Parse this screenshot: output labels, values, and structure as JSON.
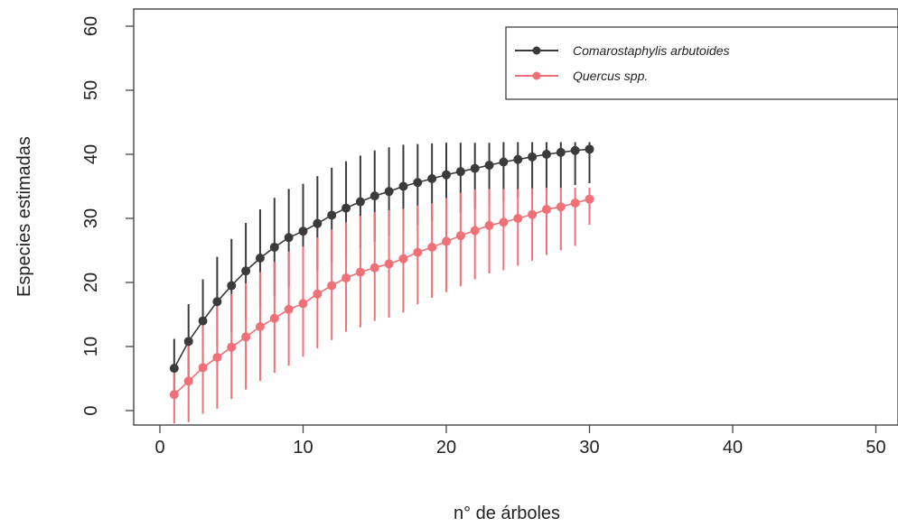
{
  "chart_data": {
    "type": "line",
    "xlabel": "n° de árboles",
    "ylabel": "Especies estimadas",
    "xlim": [
      0,
      51
    ],
    "ylim": [
      -2,
      62
    ],
    "xticks": [
      0,
      10,
      20,
      30,
      40,
      50
    ],
    "yticks": [
      0,
      10,
      20,
      30,
      40,
      50,
      60
    ],
    "grid": false,
    "legend_position": "top-right",
    "x": [
      1,
      2,
      3,
      4,
      5,
      6,
      7,
      8,
      9,
      10,
      11,
      12,
      13,
      14,
      15,
      16,
      17,
      18,
      19,
      20,
      21,
      22,
      23,
      24,
      25,
      26,
      27,
      28,
      29,
      30
    ],
    "series": [
      {
        "name": "Comarostaphylis arbutoides",
        "color": "#3d3a3c",
        "values": [
          6.6,
          10.8,
          14.0,
          17.0,
          19.5,
          21.8,
          23.8,
          25.5,
          27.0,
          28.0,
          29.2,
          30.5,
          31.6,
          32.6,
          33.5,
          34.2,
          35.0,
          35.6,
          36.2,
          36.8,
          37.3,
          37.8,
          38.3,
          38.8,
          39.2,
          39.6,
          40.0,
          40.3,
          40.6,
          40.8
        ],
        "lower": [
          2.0,
          5.0,
          7.5,
          10.0,
          12.2,
          14.3,
          16.2,
          17.8,
          19.4,
          20.6,
          21.8,
          23.1,
          24.3,
          25.4,
          26.4,
          27.3,
          28.1,
          28.9,
          29.6,
          30.3,
          30.9,
          31.5,
          32.1,
          32.7,
          33.2,
          33.7,
          34.2,
          34.7,
          35.2,
          35.5
        ],
        "upper": [
          11.2,
          16.6,
          20.5,
          24.0,
          26.8,
          29.3,
          31.4,
          33.2,
          34.6,
          35.4,
          36.6,
          37.9,
          38.9,
          39.8,
          40.6,
          41.1,
          41.5,
          41.6,
          41.7,
          41.8,
          41.8,
          41.8,
          41.8,
          41.9,
          41.9,
          41.9,
          41.9,
          41.9,
          41.9,
          41.9
        ]
      },
      {
        "name": "Quercus spp.",
        "color": "#f07078",
        "values": [
          2.5,
          4.6,
          6.7,
          8.3,
          9.9,
          11.5,
          13.1,
          14.4,
          15.8,
          16.7,
          18.2,
          19.5,
          20.7,
          21.6,
          22.3,
          22.9,
          23.7,
          24.7,
          25.5,
          26.4,
          27.3,
          28.1,
          28.9,
          29.4,
          30.0,
          30.6,
          31.4,
          31.8,
          32.4,
          33.0
        ],
        "lower": [
          -2.0,
          -1.8,
          -0.5,
          0.3,
          1.8,
          3.3,
          4.6,
          5.9,
          7.0,
          8.4,
          9.7,
          11.0,
          12.3,
          13.0,
          14.0,
          14.5,
          15.3,
          16.6,
          17.6,
          18.5,
          19.4,
          20.5,
          21.4,
          21.9,
          22.6,
          23.4,
          24.3,
          25.0,
          25.7,
          29.0
        ],
        "upper": [
          7.0,
          10.9,
          13.8,
          16.3,
          18.2,
          19.9,
          21.6,
          23.2,
          24.8,
          25.6,
          27.0,
          28.3,
          29.4,
          30.4,
          31.0,
          31.3,
          31.5,
          32.0,
          32.4,
          33.2,
          34.0,
          34.5,
          34.6,
          34.6,
          34.6,
          34.7,
          34.8,
          34.8,
          34.8,
          34.8
        ]
      }
    ]
  }
}
